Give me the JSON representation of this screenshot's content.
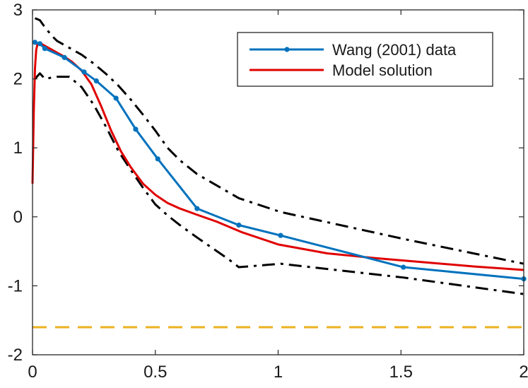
{
  "chart_data": {
    "type": "line",
    "title": "",
    "xlabel": "",
    "ylabel": "",
    "xlim": [
      0,
      2
    ],
    "ylim": [
      -2,
      3
    ],
    "xticks": [
      0,
      0.5,
      1,
      1.5,
      2
    ],
    "xtick_labels": [
      "0",
      "0.5",
      "1",
      "1.5",
      "2"
    ],
    "yticks": [
      -2,
      -1,
      0,
      1,
      2,
      3
    ],
    "ytick_labels": [
      "-2",
      "-1",
      "0",
      "1",
      "2",
      "3"
    ],
    "grid": false,
    "legend_position": "top-right",
    "series": [
      {
        "name": "Wang (2001) data",
        "role": "data",
        "color": "#0072BD",
        "style": "solid-markers",
        "x": [
          0.01,
          0.03,
          0.05,
          0.13,
          0.21,
          0.26,
          0.34,
          0.42,
          0.51,
          0.67,
          0.84,
          1.01,
          1.51,
          2.0
        ],
        "y": [
          2.53,
          2.51,
          2.44,
          2.31,
          2.1,
          1.97,
          1.72,
          1.27,
          0.84,
          0.12,
          -0.12,
          -0.27,
          -0.73,
          -0.9
        ]
      },
      {
        "name": "Model solution",
        "role": "model",
        "color": "#E00000",
        "style": "solid",
        "x": [
          0.0,
          0.005,
          0.01,
          0.015,
          0.02,
          0.03,
          0.05,
          0.08,
          0.1,
          0.13,
          0.16,
          0.2,
          0.24,
          0.28,
          0.32,
          0.36,
          0.4,
          0.45,
          0.5,
          0.55,
          0.6,
          0.67,
          0.75,
          0.85,
          1.0,
          1.2,
          1.4,
          1.6,
          1.8,
          2.0
        ],
        "y": [
          0.48,
          1.5,
          2.15,
          2.42,
          2.5,
          2.52,
          2.48,
          2.42,
          2.38,
          2.32,
          2.25,
          2.12,
          1.92,
          1.6,
          1.25,
          0.95,
          0.72,
          0.48,
          0.32,
          0.2,
          0.12,
          0.03,
          -0.07,
          -0.22,
          -0.4,
          -0.53,
          -0.6,
          -0.66,
          -0.72,
          -0.77
        ]
      },
      {
        "role": "upper-bound",
        "color": "#000000",
        "style": "dash-dot",
        "x": [
          0.01,
          0.03,
          0.05,
          0.08,
          0.1,
          0.15,
          0.2,
          0.25,
          0.3,
          0.35,
          0.4,
          0.45,
          0.5,
          0.55,
          0.6,
          0.67,
          0.84,
          1.01,
          1.51,
          2.0
        ],
        "y": [
          2.88,
          2.85,
          2.75,
          2.62,
          2.55,
          2.45,
          2.35,
          2.22,
          2.07,
          1.9,
          1.7,
          1.48,
          1.25,
          1.0,
          0.82,
          0.62,
          0.27,
          0.07,
          -0.32,
          -0.68
        ]
      },
      {
        "role": "lower-bound",
        "color": "#000000",
        "style": "dash-dot",
        "x": [
          0.01,
          0.03,
          0.05,
          0.08,
          0.1,
          0.15,
          0.2,
          0.25,
          0.3,
          0.35,
          0.4,
          0.45,
          0.5,
          0.55,
          0.6,
          0.67,
          0.8,
          0.84,
          1.01,
          1.51,
          2.0
        ],
        "y": [
          2.0,
          2.08,
          2.0,
          2.02,
          2.03,
          2.03,
          1.88,
          1.62,
          1.3,
          0.95,
          0.68,
          0.42,
          0.18,
          0.02,
          -0.12,
          -0.3,
          -0.62,
          -0.73,
          -0.68,
          -0.88,
          -1.12
        ]
      },
      {
        "role": "reference-line",
        "color": "#EDB120",
        "style": "dashed",
        "x": [
          0.0,
          2.0
        ],
        "y": [
          -1.6,
          -1.6
        ]
      }
    ]
  }
}
